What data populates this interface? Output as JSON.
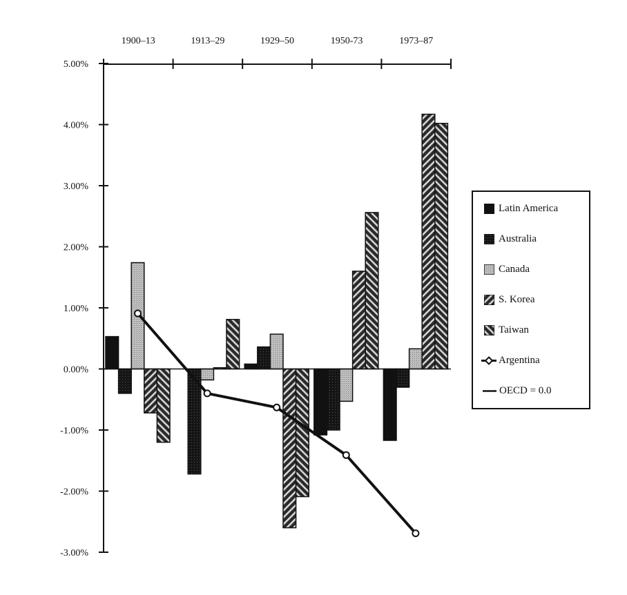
{
  "chart_data": {
    "type": "bar",
    "title": "",
    "xlabel": "",
    "ylabel": "",
    "categories": [
      "1900–13",
      "1913–29",
      "1929–50",
      "1950-73",
      "1973–87"
    ],
    "ylim": [
      -3.0,
      5.0
    ],
    "yticks": [
      "5.00%",
      "4.00%",
      "3.00%",
      "2.00%",
      "1.00%",
      "0.00%",
      "-1.00%",
      "-2.00%",
      "-3.00%"
    ],
    "grid": false,
    "legend_position": "right",
    "x_axis_position": "top",
    "series": [
      {
        "name": "Latin America",
        "kind": "bar",
        "pattern": "solid-black",
        "values": [
          0.53,
          0.0,
          0.08,
          -1.08,
          -1.17
        ]
      },
      {
        "name": "Australia",
        "kind": "bar",
        "pattern": "dark-stipple",
        "values": [
          -0.4,
          -1.72,
          0.36,
          -1.0,
          -0.3
        ]
      },
      {
        "name": "Canada",
        "kind": "bar",
        "pattern": "light-stipple",
        "values": [
          1.74,
          -0.18,
          0.57,
          -0.53,
          0.33
        ]
      },
      {
        "name": "S. Korea",
        "kind": "bar",
        "pattern": "hatch-backslash",
        "values": [
          -0.72,
          0.02,
          -2.6,
          1.6,
          4.17
        ]
      },
      {
        "name": "Taiwan",
        "kind": "bar",
        "pattern": "hatch-slash",
        "values": [
          -1.2,
          0.81,
          -2.09,
          2.56,
          4.02
        ]
      },
      {
        "name": "Argentina",
        "kind": "line",
        "marker": "diamond-open",
        "values": [
          0.91,
          -0.4,
          -0.63,
          -1.41,
          -2.69
        ]
      },
      {
        "name": "OECD = 0.0",
        "kind": "reference-line",
        "values": [
          0.0,
          0.0,
          0.0,
          0.0,
          0.0
        ]
      }
    ]
  },
  "legend": {
    "items": [
      {
        "label": "Latin America",
        "swatch": "solid-black"
      },
      {
        "label": "Australia",
        "swatch": "dark-stipple"
      },
      {
        "label": "Canada",
        "swatch": "light-stipple"
      },
      {
        "label": "S. Korea",
        "swatch": "hatch-backslash"
      },
      {
        "label": "Taiwan",
        "swatch": "hatch-slash"
      },
      {
        "label": "Argentina",
        "swatch": "line-diamond"
      },
      {
        "label": "OECD = 0.0",
        "swatch": "line"
      }
    ]
  },
  "colors": {
    "ink": "#111111",
    "light_stipple": "#b8b8b8",
    "dark_stipple": "#1e1e1e",
    "hatch_bg": "#3a3a3a",
    "hatch_fg": "#cfcfcf",
    "background": "#ffffff"
  }
}
